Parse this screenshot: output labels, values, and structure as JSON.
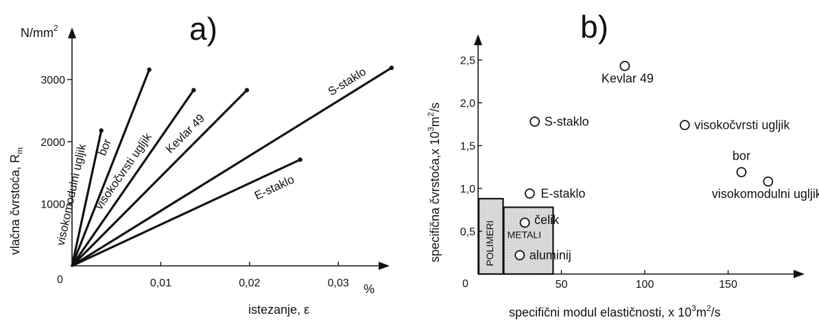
{
  "chart_data": [
    {
      "type": "line",
      "panel": "a)",
      "xlabel": "istezanje, ε",
      "ylabel": "vlačna čvrstoća, R",
      "ylabel_sub": "m",
      "yunit": "N/mm",
      "yunit_sup": "2",
      "xunit": "%",
      "xlim": [
        0,
        0.037
      ],
      "ylim": [
        0,
        3700
      ],
      "xticks": [
        "0,01",
        "0,02",
        "0,03"
      ],
      "xtick_values": [
        0.01,
        0.02,
        0.03
      ],
      "yticks": [
        "1000",
        "2000",
        "3000"
      ],
      "ytick_values": [
        1000,
        2000,
        3000
      ],
      "origin_label": "0",
      "series": [
        {
          "name": "visokomodulni ugljik",
          "x": [
            0,
            0.0033
          ],
          "y": [
            0,
            2180
          ]
        },
        {
          "name": "bor",
          "x": [
            0,
            0.0087
          ],
          "y": [
            0,
            3160
          ]
        },
        {
          "name": "visokočvrsti ugljik",
          "x": [
            0,
            0.0137
          ],
          "y": [
            0,
            2830
          ]
        },
        {
          "name": "Kevlar 49",
          "x": [
            0,
            0.0197
          ],
          "y": [
            0,
            2830
          ]
        },
        {
          "name": "S-staklo",
          "x": [
            0,
            0.036
          ],
          "y": [
            0,
            3190
          ]
        },
        {
          "name": "E-staklo",
          "x": [
            0,
            0.0257
          ],
          "y": [
            0,
            1710
          ]
        }
      ]
    },
    {
      "type": "scatter",
      "panel": "b)",
      "xlabel": "specifični modul elastičnosti, x 10",
      "xlabel_sup1": "3",
      "xlabel_mid": "m",
      "xlabel_sup2": "2",
      "xlabel_end": "/s",
      "ylabel": "specifična čvrstoća,x 10",
      "ylabel_sup1": "3",
      "ylabel_mid": "m",
      "ylabel_sup2": "2",
      "ylabel_end": "/s",
      "xlim": [
        0,
        195
      ],
      "ylim": [
        0,
        2.8
      ],
      "xticks": [
        "50",
        "100",
        "150"
      ],
      "xtick_values": [
        50,
        100,
        150
      ],
      "yticks": [
        "0,5",
        "1,0",
        "1,5",
        "2,0",
        "2,5"
      ],
      "ytick_values": [
        0.5,
        1.0,
        1.5,
        2.0,
        2.5
      ],
      "origin_label": "0",
      "points": [
        {
          "name": "Kevlar 49",
          "x": 88,
          "y": 2.43
        },
        {
          "name": "S-staklo",
          "x": 34,
          "y": 1.78
        },
        {
          "name": "visokočvrsti ugljik",
          "x": 124,
          "y": 1.74
        },
        {
          "name": "bor",
          "x": 158,
          "y": 1.19
        },
        {
          "name": "visokomodulni ugljik",
          "x": 174,
          "y": 1.08
        },
        {
          "name": "E-staklo",
          "x": 31,
          "y": 0.94
        },
        {
          "name": "čelik",
          "x": 28,
          "y": 0.6
        },
        {
          "name": "aluminij",
          "x": 25,
          "y": 0.22
        }
      ],
      "regions": [
        {
          "name": "POLIMERI",
          "x": [
            0,
            15
          ],
          "y": [
            0,
            0.88
          ]
        },
        {
          "name": "METALI",
          "x": [
            15,
            45
          ],
          "y": [
            0,
            0.78
          ]
        }
      ]
    }
  ]
}
